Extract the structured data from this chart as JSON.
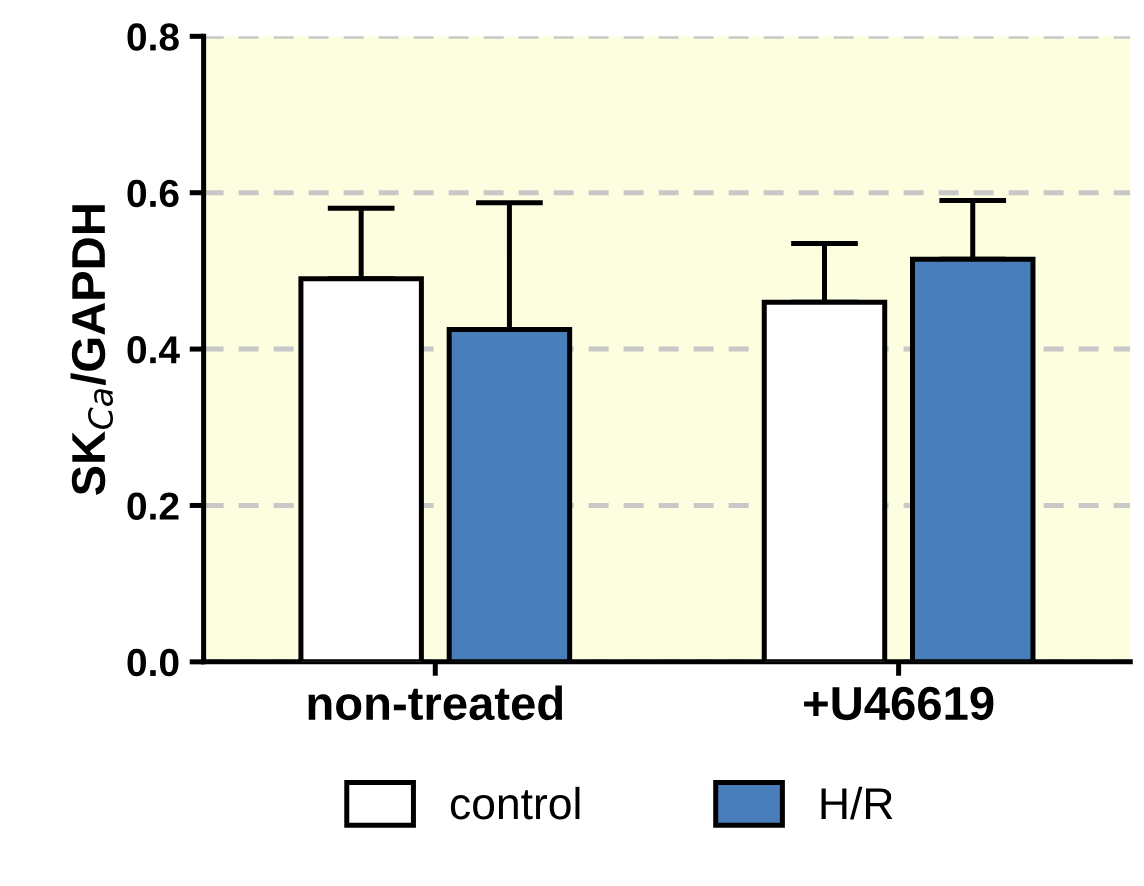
{
  "chart_data": {
    "type": "bar",
    "ylabel": "SK$_{Ca}$/GAPDH",
    "categories": [
      "non-treated",
      "+U46619"
    ],
    "series": [
      {
        "name": "control",
        "color": "#ffffff",
        "values": [
          0.49,
          0.46
        ],
        "errors": [
          [
            0.49,
            0.58
          ],
          [
            0.46,
            0.535
          ]
        ]
      },
      {
        "name": "H/R",
        "color": "#4a7ebb",
        "values": [
          0.425,
          0.515
        ],
        "errors": [
          [
            0.425,
            0.587
          ],
          [
            0.515,
            0.59
          ]
        ]
      }
    ],
    "ylim": [
      0,
      0.8
    ],
    "yticks": [
      {
        "value": 0,
        "label": "0.0"
      },
      {
        "value": 0.2,
        "label": "0.2"
      },
      {
        "value": 0.4,
        "label": "0.4"
      },
      {
        "value": 0.6,
        "label": "0.6"
      },
      {
        "value": 0.8,
        "label": "0.8"
      }
    ],
    "grid": "y",
    "legend": "bottom"
  }
}
